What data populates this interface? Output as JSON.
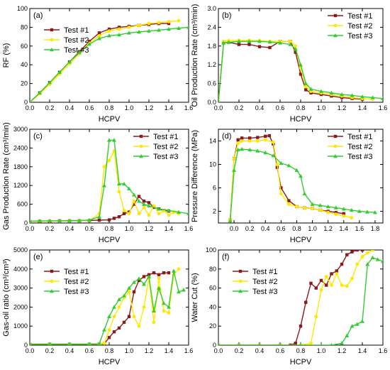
{
  "chart_data": [
    {
      "type": "line",
      "panel": "(a)",
      "xlabel": "HCPV",
      "ylabel": "RF (%)",
      "xlim": [
        0,
        1.6
      ],
      "ylim": [
        0,
        100
      ],
      "xticks": [
        0.0,
        0.2,
        0.4,
        0.6,
        0.8,
        1.0,
        1.2,
        1.4,
        1.6
      ],
      "xtick_labels": [
        "0.0",
        "0.2",
        "0.4",
        "0.6",
        "0.8",
        "1.0",
        "1.2",
        "1.4",
        "1.6"
      ],
      "yticks": [
        0,
        20,
        40,
        60,
        80,
        100
      ],
      "ytick_labels": [
        "0",
        "20",
        "40",
        "60",
        "80",
        "100"
      ],
      "legend": "top-left",
      "series": [
        {
          "name": "Test #1",
          "color": "#8B1A1A",
          "marker": "square",
          "x": [
            0.0,
            0.1,
            0.2,
            0.3,
            0.4,
            0.5,
            0.6,
            0.7,
            0.8,
            0.9,
            1.0,
            1.1,
            1.2,
            1.3,
            1.4
          ],
          "y": [
            0,
            10,
            21,
            32,
            43,
            54,
            65,
            74,
            78,
            80,
            81,
            82,
            83,
            84,
            84
          ]
        },
        {
          "name": "Test #2",
          "color": "#FFE800",
          "marker": "circle",
          "x": [
            0.0,
            0.1,
            0.2,
            0.3,
            0.4,
            0.5,
            0.6,
            0.7,
            0.8,
            0.9,
            1.0,
            1.1,
            1.2,
            1.3,
            1.4,
            1.5
          ],
          "y": [
            0,
            9,
            19,
            30,
            41,
            52,
            63,
            71,
            76,
            78,
            80,
            82,
            84,
            85,
            86,
            87
          ]
        },
        {
          "name": "Test #3",
          "color": "#33CC33",
          "marker": "triangle",
          "x": [
            0.0,
            0.1,
            0.2,
            0.3,
            0.4,
            0.5,
            0.6,
            0.7,
            0.8,
            0.9,
            1.0,
            1.1,
            1.2,
            1.3,
            1.4,
            1.5,
            1.6
          ],
          "y": [
            0,
            10,
            21,
            32,
            43,
            53,
            62,
            68,
            71,
            72,
            74,
            75,
            76,
            77,
            78,
            79,
            80
          ]
        }
      ]
    },
    {
      "type": "line",
      "panel": "(b)",
      "xlabel": "HCPV",
      "ylabel": "Oil Production Rate (cm³/min)",
      "xlim": [
        0,
        1.6
      ],
      "ylim": [
        0,
        3
      ],
      "xticks": [
        0.0,
        0.2,
        0.4,
        0.6,
        0.8,
        1.0,
        1.2,
        1.4,
        1.6
      ],
      "xtick_labels": [
        "0.0",
        "0.2",
        "0.4",
        "0.6",
        "0.8",
        "1.0",
        "1.2",
        "1.4",
        "1.6"
      ],
      "yticks": [
        0,
        0.6,
        1.2,
        1.8,
        2.4,
        3.0
      ],
      "ytick_labels": [
        "0.0",
        "0.6",
        "1.2",
        "1.8",
        "2.4",
        "3.0"
      ],
      "legend": "top-right",
      "series": [
        {
          "name": "Test #1",
          "color": "#8B1A1A",
          "marker": "square",
          "x": [
            0.0,
            0.05,
            0.1,
            0.2,
            0.3,
            0.4,
            0.5,
            0.6,
            0.7,
            0.75,
            0.8,
            0.85,
            0.9,
            1.0,
            1.1,
            1.2,
            1.3,
            1.4
          ],
          "y": [
            0.0,
            1.9,
            1.92,
            1.85,
            1.85,
            1.78,
            1.75,
            1.95,
            1.95,
            1.6,
            0.9,
            0.4,
            0.3,
            0.25,
            0.2,
            0.15,
            0.12,
            0.1
          ]
        },
        {
          "name": "Test #2",
          "color": "#FFE800",
          "marker": "circle",
          "x": [
            0.0,
            0.05,
            0.1,
            0.2,
            0.3,
            0.4,
            0.5,
            0.6,
            0.7,
            0.75,
            0.8,
            0.85,
            0.9,
            1.0,
            1.1,
            1.2,
            1.3,
            1.4,
            1.5
          ],
          "y": [
            0.0,
            1.95,
            1.97,
            1.98,
            1.98,
            1.97,
            1.95,
            1.95,
            1.95,
            1.8,
            1.1,
            0.5,
            0.35,
            0.3,
            0.25,
            0.2,
            0.15,
            0.12,
            0.1
          ]
        },
        {
          "name": "Test #3",
          "color": "#33CC33",
          "marker": "triangle",
          "x": [
            0.0,
            0.05,
            0.1,
            0.2,
            0.3,
            0.4,
            0.5,
            0.6,
            0.7,
            0.75,
            0.8,
            0.85,
            0.9,
            1.0,
            1.1,
            1.2,
            1.3,
            1.4,
            1.5,
            1.6
          ],
          "y": [
            0.0,
            1.9,
            1.92,
            1.95,
            1.95,
            1.95,
            1.93,
            1.9,
            1.85,
            1.7,
            1.2,
            0.6,
            0.42,
            0.35,
            0.3,
            0.25,
            0.22,
            0.18,
            0.15,
            0.12
          ]
        }
      ]
    },
    {
      "type": "line",
      "panel": "(c)",
      "xlabel": "HCPV",
      "ylabel": "Gas Production Rate (cm³/min)",
      "xlim": [
        0,
        1.6
      ],
      "ylim": [
        0,
        3000
      ],
      "xticks": [
        0.0,
        0.2,
        0.4,
        0.6,
        0.8,
        1.0,
        1.2,
        1.4,
        1.6
      ],
      "xtick_labels": [
        "0.0",
        "0.2",
        "0.4",
        "0.6",
        "0.8",
        "1.0",
        "1.2",
        "1.4",
        "1.6"
      ],
      "yticks": [
        0,
        600,
        1200,
        1800,
        2400,
        3000
      ],
      "ytick_labels": [
        "0",
        "600",
        "1200",
        "1800",
        "2400",
        "3000"
      ],
      "legend": "top-right",
      "series": [
        {
          "name": "Test #1",
          "color": "#8B1A1A",
          "marker": "square",
          "x": [
            0.0,
            0.1,
            0.2,
            0.3,
            0.4,
            0.5,
            0.6,
            0.7,
            0.8,
            0.85,
            0.9,
            0.95,
            1.0,
            1.05,
            1.1,
            1.15,
            1.2,
            1.25,
            1.3,
            1.35,
            1.4
          ],
          "y": [
            50,
            60,
            60,
            70,
            70,
            70,
            80,
            90,
            100,
            150,
            200,
            300,
            350,
            600,
            850,
            700,
            650,
            500,
            450,
            400,
            380
          ]
        },
        {
          "name": "Test #2",
          "color": "#FFE800",
          "marker": "circle",
          "x": [
            0.0,
            0.1,
            0.2,
            0.3,
            0.4,
            0.5,
            0.6,
            0.7,
            0.75,
            0.8,
            0.85,
            0.9,
            0.95,
            1.0,
            1.05,
            1.1,
            1.15,
            1.2,
            1.25,
            1.3,
            1.35,
            1.4,
            1.45,
            1.5
          ],
          "y": [
            50,
            60,
            60,
            60,
            70,
            70,
            80,
            300,
            1800,
            2000,
            2300,
            1000,
            400,
            300,
            700,
            300,
            500,
            250,
            550,
            300,
            400,
            250,
            350,
            300
          ]
        },
        {
          "name": "Test #3",
          "color": "#33CC33",
          "marker": "triangle",
          "x": [
            0.0,
            0.1,
            0.2,
            0.3,
            0.4,
            0.5,
            0.6,
            0.7,
            0.75,
            0.8,
            0.85,
            0.9,
            0.95,
            1.0,
            1.05,
            1.1,
            1.15,
            1.2,
            1.3,
            1.4,
            1.5,
            1.6
          ],
          "y": [
            60,
            70,
            70,
            70,
            80,
            80,
            90,
            200,
            1200,
            2650,
            2650,
            1250,
            1250,
            1100,
            900,
            700,
            600,
            550,
            450,
            400,
            350,
            300
          ]
        }
      ]
    },
    {
      "type": "line",
      "panel": "(d)",
      "xlabel": "HCPV",
      "ylabel": "Pressure Difference (MPa)",
      "xlim": [
        -0.2,
        1.9
      ],
      "ylim": [
        0,
        16
      ],
      "xticks": [
        0.0,
        0.2,
        0.4,
        0.6,
        0.8,
        1.0,
        1.2,
        1.4,
        1.6,
        1.8
      ],
      "xtick_labels": [
        "0.0",
        "0.2",
        "0.4",
        "0.6",
        "0.8",
        "1.0",
        "1.2",
        "1.4",
        "1.6",
        "1.8"
      ],
      "yticks": [
        2,
        6,
        10,
        14
      ],
      "ytick_labels": [
        "2",
        "6",
        "10",
        "14"
      ],
      "legend": "top-right",
      "series": [
        {
          "name": "Test #1",
          "color": "#8B1A1A",
          "marker": "square",
          "x": [
            -0.05,
            0.0,
            0.05,
            0.1,
            0.2,
            0.3,
            0.4,
            0.45,
            0.5,
            0.55,
            0.6,
            0.7,
            0.8,
            0.9,
            1.0,
            1.1,
            1.2,
            1.3,
            1.4
          ],
          "y": [
            0.5,
            11,
            14.2,
            14.5,
            14.5,
            14.6,
            14.8,
            14.9,
            13.5,
            9.5,
            6.0,
            3.8,
            2.8,
            2.6,
            2.5,
            2.2,
            2.0,
            1.8,
            1.6
          ]
        },
        {
          "name": "Test #2",
          "color": "#FFE800",
          "marker": "circle",
          "x": [
            -0.05,
            0.0,
            0.05,
            0.1,
            0.2,
            0.3,
            0.4,
            0.5,
            0.55,
            0.6,
            0.7,
            0.8,
            0.9,
            1.0,
            1.1,
            1.2,
            1.3,
            1.4,
            1.5
          ],
          "y": [
            0.5,
            11,
            13.6,
            14.0,
            14.0,
            14.0,
            14.2,
            13.8,
            10.0,
            5.0,
            3.2,
            2.8,
            2.6,
            2.5,
            2.2,
            1.8,
            1.5,
            1.2,
            0.9
          ]
        },
        {
          "name": "Test #3",
          "color": "#33CC33",
          "marker": "triangle",
          "x": [
            -0.05,
            0.0,
            0.05,
            0.1,
            0.2,
            0.3,
            0.4,
            0.5,
            0.6,
            0.7,
            0.8,
            0.85,
            0.9,
            1.0,
            1.1,
            1.2,
            1.3,
            1.4,
            1.5,
            1.6,
            1.7,
            1.8
          ],
          "y": [
            0.3,
            9.0,
            12.5,
            12.6,
            12.5,
            12.3,
            12.0,
            11.5,
            10.2,
            9.8,
            9.0,
            8.0,
            5.0,
            3.2,
            3.0,
            2.8,
            2.6,
            2.4,
            2.2,
            2.0,
            1.9,
            1.8
          ]
        }
      ]
    },
    {
      "type": "line",
      "panel": "(e)",
      "xlabel": "HCPV",
      "ylabel": "Gas-oil ratio (cm³/cm³)",
      "xlim": [
        0,
        1.6
      ],
      "ylim": [
        0,
        5000
      ],
      "xticks": [
        0.0,
        0.2,
        0.4,
        0.6,
        0.8,
        1.0,
        1.2,
        1.4,
        1.6
      ],
      "xtick_labels": [
        "0.0",
        "0.2",
        "0.4",
        "0.6",
        "0.8",
        "1.0",
        "1.2",
        "1.4",
        "1.6"
      ],
      "yticks": [
        0,
        1000,
        2000,
        3000,
        4000,
        5000
      ],
      "ytick_labels": [
        "0",
        "1000",
        "2000",
        "3000",
        "4000",
        "5000"
      ],
      "legend": "top-left",
      "series": [
        {
          "name": "Test #1",
          "color": "#8B1A1A",
          "marker": "square",
          "x": [
            0.0,
            0.2,
            0.4,
            0.6,
            0.7,
            0.75,
            0.8,
            0.85,
            0.9,
            0.95,
            1.0,
            1.05,
            1.1,
            1.15,
            1.2,
            1.25,
            1.3,
            1.35,
            1.4
          ],
          "y": [
            50,
            50,
            50,
            50,
            60,
            80,
            400,
            700,
            900,
            1200,
            1500,
            2800,
            3400,
            3600,
            3700,
            3800,
            3700,
            3800,
            3800
          ]
        },
        {
          "name": "Test #2",
          "color": "#FFE800",
          "marker": "circle",
          "x": [
            0.0,
            0.2,
            0.4,
            0.6,
            0.7,
            0.75,
            0.8,
            0.85,
            0.9,
            0.95,
            1.0,
            1.05,
            1.1,
            1.15,
            1.2,
            1.25,
            1.3,
            1.35,
            1.4,
            1.45,
            1.5
          ],
          "y": [
            50,
            50,
            50,
            50,
            60,
            100,
            800,
            1500,
            2000,
            2500,
            2800,
            1500,
            1000,
            2000,
            3500,
            1200,
            3500,
            1800,
            1700,
            3700,
            4000
          ]
        },
        {
          "name": "Test #3",
          "color": "#33CC33",
          "marker": "triangle",
          "x": [
            0.0,
            0.2,
            0.4,
            0.6,
            0.7,
            0.75,
            0.8,
            0.85,
            0.9,
            0.95,
            1.0,
            1.05,
            1.1,
            1.15,
            1.2,
            1.25,
            1.3,
            1.35,
            1.4,
            1.45,
            1.5,
            1.55
          ],
          "y": [
            60,
            60,
            60,
            60,
            70,
            800,
            1500,
            2000,
            2400,
            2600,
            3000,
            3300,
            3500,
            3200,
            3600,
            1800,
            3000,
            2200,
            2000,
            3900,
            2800,
            2900
          ]
        }
      ]
    },
    {
      "type": "line",
      "panel": "(f)",
      "xlabel": "HCPV",
      "ylabel": "Water Cut (%)",
      "xlim": [
        0,
        1.6
      ],
      "ylim": [
        0,
        100
      ],
      "xticks": [
        0.0,
        0.2,
        0.4,
        0.6,
        0.8,
        1.0,
        1.2,
        1.4,
        1.6
      ],
      "xtick_labels": [
        "0.0",
        "0.2",
        "0.4",
        "0.6",
        "0.8",
        "1.0",
        "1.2",
        "1.4",
        "1.6"
      ],
      "yticks": [
        0,
        20,
        40,
        60,
        80,
        100
      ],
      "ytick_labels": [
        "0",
        "20",
        "40",
        "60",
        "80",
        "100"
      ],
      "legend": "top-left",
      "series": [
        {
          "name": "Test #1",
          "color": "#8B1A1A",
          "marker": "square",
          "x": [
            0.0,
            0.2,
            0.4,
            0.6,
            0.7,
            0.75,
            0.8,
            0.85,
            0.9,
            0.95,
            1.0,
            1.05,
            1.1,
            1.15,
            1.2,
            1.25,
            1.3,
            1.35,
            1.4
          ],
          "y": [
            0,
            0,
            0,
            0,
            0,
            2,
            20,
            45,
            65,
            60,
            68,
            63,
            75,
            78,
            85,
            95,
            98,
            100,
            100
          ]
        },
        {
          "name": "Test #2",
          "color": "#FFE800",
          "marker": "circle",
          "x": [
            0.0,
            0.2,
            0.4,
            0.6,
            0.8,
            0.9,
            0.95,
            1.0,
            1.05,
            1.1,
            1.15,
            1.2,
            1.25,
            1.3,
            1.35,
            1.4,
            1.45,
            1.5
          ],
          "y": [
            0,
            0,
            0,
            0,
            0,
            2,
            30,
            58,
            72,
            63,
            75,
            63,
            62,
            70,
            85,
            93,
            97,
            100
          ]
        },
        {
          "name": "Test #3",
          "color": "#33CC33",
          "marker": "triangle",
          "x": [
            0.0,
            0.2,
            0.4,
            0.6,
            0.8,
            1.0,
            1.1,
            1.2,
            1.25,
            1.3,
            1.35,
            1.4,
            1.45,
            1.5,
            1.55,
            1.6
          ],
          "y": [
            0,
            0,
            0,
            0,
            0,
            0,
            0,
            2,
            10,
            20,
            22,
            25,
            85,
            92,
            90,
            88
          ]
        }
      ]
    }
  ]
}
